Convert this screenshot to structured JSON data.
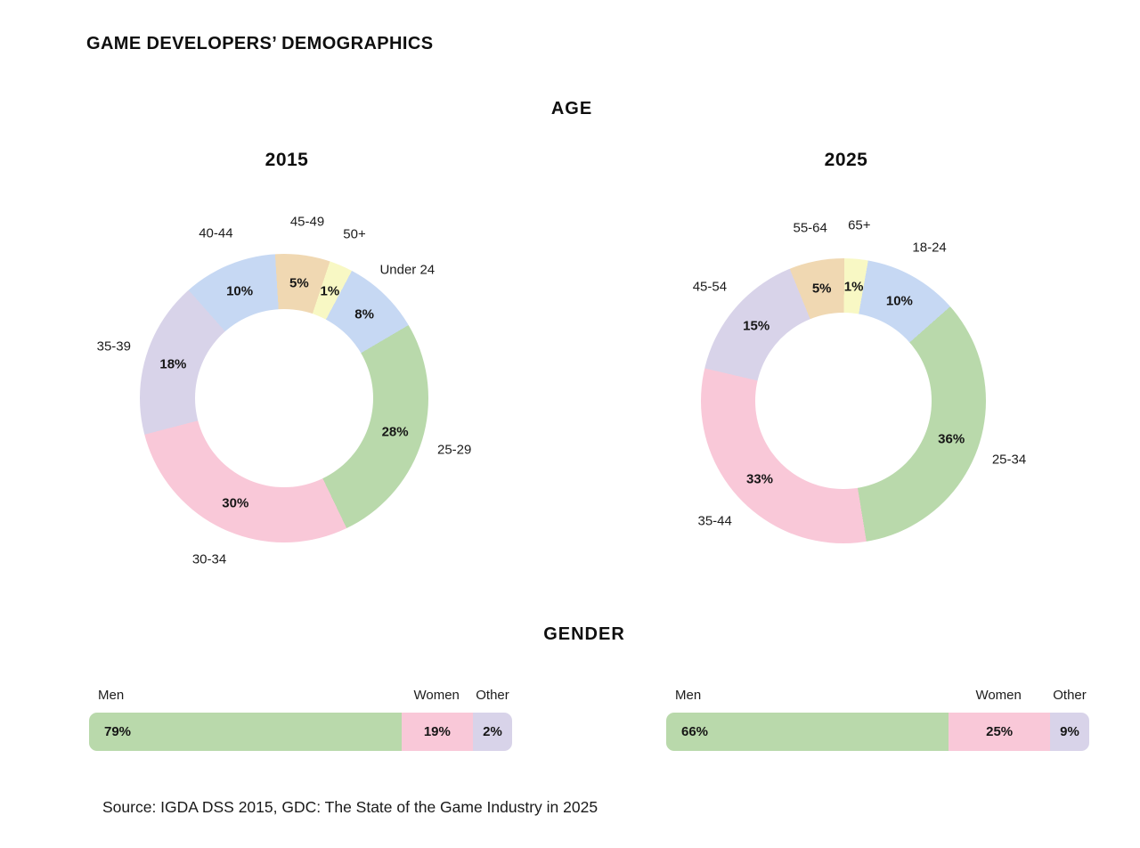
{
  "title": "GAME DEVELOPERS’ DEMOGRAPHICS",
  "sections": {
    "age": {
      "heading": "AGE"
    },
    "gender": {
      "heading": "GENDER"
    }
  },
  "source": "Source: IGDA DSS 2015, GDC: The State of the Game Industry in 2025",
  "palette": {
    "green": "#b9d9ab",
    "pink": "#f9c8d8",
    "lavender": "#d8d3e9",
    "blue": "#c6d8f3",
    "tan": "#f0d8b2",
    "yellow": "#f8f8c4"
  },
  "chart_data": [
    {
      "type": "pie",
      "subtype": "donut",
      "section": "AGE",
      "title": "2015",
      "categories": [
        "Under 24",
        "25-29",
        "30-34",
        "35-39",
        "40-44",
        "45-49",
        "50+"
      ],
      "values": [
        8,
        28,
        30,
        18,
        10,
        5,
        1
      ],
      "unit": "%",
      "colors": [
        "#c6d8f3",
        "#b9d9ab",
        "#f9c8d8",
        "#d8d3e9",
        "#c6d8f3",
        "#f0d8b2",
        "#f8f8c4"
      ],
      "labels": "categories outside ring, bold percent values inside ring",
      "legend_position": "none"
    },
    {
      "type": "pie",
      "subtype": "donut",
      "section": "AGE",
      "title": "2025",
      "categories": [
        "18-24",
        "25-34",
        "35-44",
        "45-54",
        "55-64",
        "65+"
      ],
      "values": [
        10,
        36,
        33,
        15,
        5,
        1
      ],
      "unit": "%",
      "colors": [
        "#c6d8f3",
        "#b9d9ab",
        "#f9c8d8",
        "#d8d3e9",
        "#f0d8b2",
        "#f8f8c4"
      ],
      "labels": "categories outside ring, bold percent values inside ring",
      "legend_position": "none"
    },
    {
      "type": "bar",
      "subtype": "stacked-horizontal",
      "section": "GENDER",
      "column": "2015",
      "categories": [
        "Men",
        "Women",
        "Other"
      ],
      "values": [
        79,
        19,
        2
      ],
      "unit": "%",
      "colors": [
        "#b9d9ab",
        "#f9c8d8",
        "#d8d3e9"
      ],
      "labels": "category names above bar, bold percent values inside segments"
    },
    {
      "type": "bar",
      "subtype": "stacked-horizontal",
      "section": "GENDER",
      "column": "2025",
      "categories": [
        "Men",
        "Women",
        "Other"
      ],
      "values": [
        66,
        25,
        9
      ],
      "unit": "%",
      "colors": [
        "#b9d9ab",
        "#f9c8d8",
        "#d8d3e9"
      ],
      "labels": "category names above bar, bold percent values inside segments"
    }
  ]
}
